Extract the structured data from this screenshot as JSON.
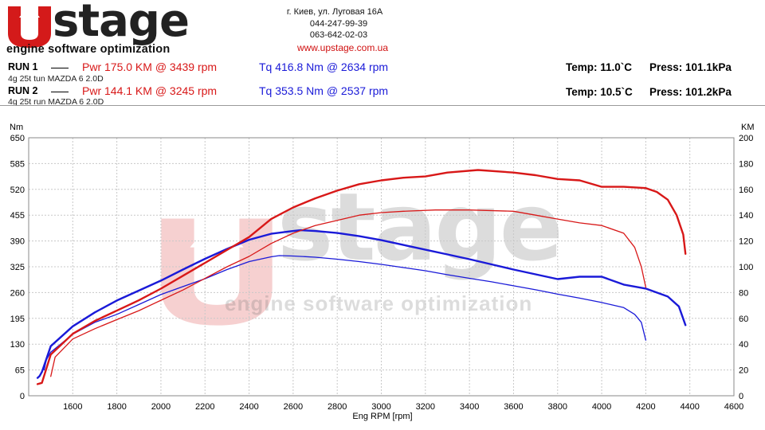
{
  "brand": {
    "logo_text": "Upstage",
    "word": "stage",
    "tagline": "engine software optimization",
    "address": "г. Киев, ул. Луговая 16А",
    "phone1": "044-247-99-39",
    "phone2": "063-642-02-03",
    "website": "www.upstage.com.ua",
    "red": "#d41a1a",
    "dark": "#222222"
  },
  "runs": [
    {
      "label": "RUN 1",
      "desc": "4g 25t tun MAZDA 6 2.0D",
      "pwr": "Pwr  175.0 KM @ 3439 rpm",
      "tq": "Tq 416.8 Nm @ 2634 rpm",
      "temp": "Temp: 11.0`C",
      "press": "Press: 101.1kPa"
    },
    {
      "label": "RUN 2",
      "desc": "4g 25t run MAZDA 6 2.0D",
      "pwr": "Pwr  144.1 KM @ 3245 rpm",
      "tq": "Tq 353.5 Nm @ 2537 rpm",
      "temp": "Temp: 10.5`C",
      "press": "Press: 101.2kPa"
    }
  ],
  "chart_data": {
    "type": "line",
    "xlabel": "Eng RPM [rpm]",
    "ylabel_left": "Nm",
    "ylabel_right": "KM",
    "xlim": [
      1400,
      4600
    ],
    "xticks": [
      1400,
      1600,
      1800,
      2000,
      2200,
      2400,
      2600,
      2800,
      3000,
      3200,
      3400,
      3600,
      3800,
      4000,
      4200,
      4400,
      4600
    ],
    "ylim_left": [
      0,
      650
    ],
    "yticks_left": [
      0,
      65,
      130,
      195,
      260,
      325,
      390,
      455,
      520,
      585,
      650
    ],
    "ylim_right": [
      0,
      200
    ],
    "yticks_right": [
      0,
      20,
      40,
      60,
      80,
      100,
      120,
      140,
      160,
      180,
      200
    ],
    "grid": true,
    "series": [
      {
        "name": "RUN 1 Tq",
        "axis": "left",
        "color": "#1a1ad8",
        "width": 2.4,
        "x": [
          1440,
          1450,
          1460,
          1500,
          1600,
          1700,
          1800,
          1900,
          2000,
          2100,
          2200,
          2300,
          2400,
          2500,
          2600,
          2634,
          2700,
          2800,
          2900,
          3000,
          3100,
          3200,
          3300,
          3400,
          3500,
          3600,
          3700,
          3800,
          3900,
          4000,
          4100,
          4200,
          4300,
          4350,
          4380
        ],
        "y": [
          45,
          50,
          60,
          125,
          175,
          210,
          240,
          265,
          290,
          318,
          345,
          370,
          393,
          408,
          415,
          417,
          415,
          410,
          402,
          392,
          380,
          368,
          356,
          344,
          331,
          318,
          306,
          294,
          300,
          300,
          280,
          270,
          250,
          225,
          178
        ]
      },
      {
        "name": "RUN 2 Tq",
        "axis": "left",
        "color": "#1a1ad8",
        "width": 1.3,
        "x": [
          1470,
          1480,
          1500,
          1600,
          1700,
          1800,
          1900,
          2000,
          2100,
          2200,
          2300,
          2400,
          2500,
          2537,
          2600,
          2700,
          2800,
          2900,
          3000,
          3100,
          3200,
          3300,
          3400,
          3500,
          3600,
          3700,
          3800,
          3900,
          4000,
          4100,
          4150,
          4180,
          4200
        ],
        "y": [
          65,
          90,
          110,
          155,
          185,
          205,
          230,
          255,
          275,
          295,
          318,
          338,
          350,
          353,
          352,
          349,
          344,
          338,
          331,
          323,
          315,
          305,
          296,
          287,
          277,
          267,
          256,
          246,
          235,
          222,
          205,
          185,
          140
        ]
      },
      {
        "name": "RUN 1 Pwr",
        "axis": "right",
        "color": "#d81818",
        "width": 2.4,
        "x": [
          1440,
          1460,
          1500,
          1600,
          1700,
          1800,
          1900,
          2000,
          2100,
          2200,
          2300,
          2400,
          2500,
          2600,
          2700,
          2800,
          2900,
          3000,
          3100,
          3200,
          3300,
          3439,
          3600,
          3700,
          3800,
          3900,
          4000,
          4100,
          4200,
          4250,
          4300,
          4340,
          4370,
          4380
        ],
        "y": [
          9,
          10,
          32,
          48,
          58,
          66,
          74,
          83,
          93,
          103,
          113,
          123,
          137,
          146,
          153,
          159,
          164,
          167,
          169,
          170,
          173,
          175,
          173,
          171,
          168,
          167,
          162,
          162,
          161,
          158,
          152,
          140,
          125,
          110
        ]
      },
      {
        "name": "RUN 2 Pwr",
        "axis": "right",
        "color": "#d81818",
        "width": 1.3,
        "x": [
          1500,
          1520,
          1600,
          1700,
          1800,
          1900,
          2000,
          2100,
          2200,
          2300,
          2400,
          2500,
          2600,
          2700,
          2800,
          2900,
          3000,
          3100,
          3245,
          3400,
          3600,
          3700,
          3800,
          3900,
          4000,
          4100,
          4150,
          4180,
          4200
        ],
        "y": [
          15,
          30,
          44,
          52,
          59,
          66,
          74,
          82,
          91,
          100,
          108,
          118,
          126,
          132,
          136,
          140,
          142,
          143,
          144,
          144,
          143,
          140,
          137,
          134,
          132,
          126,
          115,
          100,
          84
        ]
      }
    ]
  }
}
